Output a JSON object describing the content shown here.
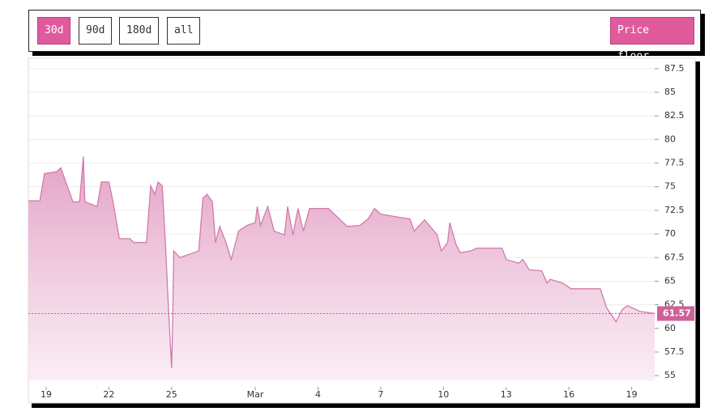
{
  "buttons": [
    "30d",
    "90d",
    "180d",
    "all"
  ],
  "toggle": "Price floor",
  "chart_data": {
    "type": "area",
    "x": [
      -0.85,
      -0.3,
      -0.08,
      0.5,
      0.7,
      1.28,
      1.6,
      1.78,
      1.85,
      2.44,
      2.64,
      3.0,
      3.2,
      3.5,
      4.0,
      4.2,
      4.8,
      5.0,
      5.2,
      5.35,
      5.55,
      5.7,
      5.85,
      6.0,
      6.05,
      6.1,
      6.4,
      6.8,
      7.3,
      7.5,
      7.7,
      7.95,
      8.1,
      8.3,
      8.6,
      8.85,
      9.2,
      9.6,
      10.0,
      10.1,
      10.25,
      10.6,
      10.9,
      11.4,
      11.55,
      11.8,
      12.05,
      12.3,
      12.6,
      13.5,
      14.4,
      15.0,
      15.4,
      15.7,
      16.0,
      16.8,
      17.4,
      17.6,
      18.1,
      18.7,
      18.9,
      19.2,
      19.3,
      19.6,
      19.8,
      20.3,
      20.6,
      21.8,
      22.0,
      22.6,
      22.8,
      23.1,
      23.7,
      23.95,
      24.1,
      24.7,
      25.1,
      26.5,
      26.8,
      27.25,
      27.55,
      27.8,
      28.4,
      29.1
    ],
    "series": [
      {
        "color": "#d27aaa",
        "fill": "#e6a6c9",
        "values": [
          73.5,
          73.5,
          76.4,
          76.6,
          77,
          73.4,
          73.4,
          78.2,
          73.4,
          72.9,
          75.5,
          75.5,
          73.4,
          69.5,
          69.5,
          69.1,
          69.1,
          75.1,
          74.2,
          75.5,
          75.1,
          69.1,
          62.2,
          55.8,
          60.5,
          68.2,
          67.5,
          67.8,
          68.2,
          73.8,
          74.2,
          73.4,
          69.1,
          70.8,
          69.1,
          67.3,
          70.3,
          70.9,
          71.2,
          72.9,
          70.9,
          72.9,
          70.3,
          69.9,
          72.9,
          69.9,
          72.7,
          70.3,
          72.7,
          72.7,
          70.8,
          70.9,
          71.6,
          72.7,
          72.1,
          71.8,
          71.6,
          70.3,
          71.5,
          69.9,
          68.2,
          69.1,
          71.2,
          68.9,
          68.0,
          68.2,
          68.5,
          68.5,
          67.3,
          66.9,
          67.3,
          66.2,
          66.1,
          64.8,
          65.2,
          64.8,
          64.2,
          64.2,
          62.2,
          60.7,
          62.0,
          62.4,
          61.8,
          61.57
        ]
      }
    ],
    "last_price": 61.57,
    "xlim": [
      -0.85,
      29.1
    ],
    "ylim": [
      54.5,
      88.6
    ],
    "xticks": [
      {
        "value": 0,
        "label": "19"
      },
      {
        "value": 3,
        "label": "22"
      },
      {
        "value": 6,
        "label": "25"
      },
      {
        "value": 10,
        "label": "Mar"
      },
      {
        "value": 13,
        "label": "4"
      },
      {
        "value": 16,
        "label": "7"
      },
      {
        "value": 19,
        "label": "10"
      },
      {
        "value": 22,
        "label": "13"
      },
      {
        "value": 25,
        "label": "16"
      },
      {
        "value": 28,
        "label": "19"
      }
    ],
    "yticks": [
      55,
      57.5,
      60,
      62.5,
      65,
      67.5,
      70,
      72.5,
      75,
      77.5,
      80,
      82.5,
      85,
      87.5
    ],
    "grid": true
  }
}
